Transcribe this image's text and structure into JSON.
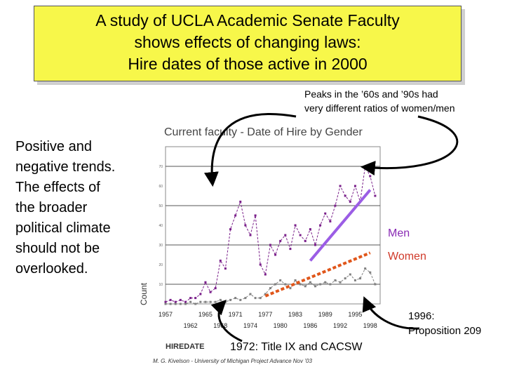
{
  "title": {
    "lines": [
      "A study of UCLA Academic Senate Faculty",
      "shows effects of changing laws:",
      "Hire dates of those active in 2000"
    ]
  },
  "annotations": {
    "peaks_lines": [
      "Peaks in the ’60s and ’90s had",
      "very different ratios of women/men"
    ],
    "trend_lines": [
      "Positive and",
      "negative trends.",
      "The effects of",
      "the broader",
      "political climate",
      "should not be",
      "overlooked."
    ],
    "men_label": "Men",
    "women_label": "Women",
    "prop_lines": [
      "1996:",
      "Proposition 209"
    ],
    "title9": "1972: Title IX and CACSW",
    "credit": "M. G. Kivelson - University of Michigan  Project Advance Nov ’03"
  },
  "colors": {
    "title_bg": "#f7f74a",
    "men": "#7a1f8a",
    "women": "#808080",
    "men_trend": "#9b5de5",
    "women_trend": "#e0561a"
  },
  "chart_data": {
    "type": "line",
    "title": "Current faculty - Date of Hire by Gender",
    "xlabel": "HIREDATE",
    "ylabel": "Count",
    "xlim": [
      1957,
      2000
    ],
    "ylim": [
      0,
      80
    ],
    "grid": true,
    "x_ticks_top": [
      "1957",
      "1965",
      "1971",
      "1977",
      "1983",
      "1989",
      "1995"
    ],
    "x_ticks_bottom": [
      "1962",
      "1968",
      "1974",
      "1980",
      "1986",
      "1992",
      "1998"
    ],
    "x": [
      1957,
      1958,
      1959,
      1960,
      1961,
      1962,
      1963,
      1964,
      1965,
      1966,
      1967,
      1968,
      1969,
      1970,
      1971,
      1972,
      1973,
      1974,
      1975,
      1976,
      1977,
      1978,
      1979,
      1980,
      1981,
      1982,
      1983,
      1984,
      1985,
      1986,
      1987,
      1988,
      1989,
      1990,
      1991,
      1992,
      1993,
      1994,
      1995,
      1996,
      1997,
      1998,
      1999
    ],
    "series": [
      {
        "name": "Men",
        "values": [
          1,
          2,
          1,
          2,
          1,
          3,
          3,
          5,
          11,
          6,
          8,
          22,
          18,
          38,
          45,
          52,
          40,
          35,
          45,
          20,
          15,
          30,
          25,
          32,
          35,
          28,
          40,
          35,
          32,
          38,
          30,
          40,
          46,
          42,
          50,
          60,
          55,
          52,
          60,
          52,
          70,
          65,
          55
        ]
      },
      {
        "name": "Women",
        "values": [
          0,
          0,
          0,
          0,
          0,
          1,
          0,
          1,
          1,
          1,
          1,
          2,
          1,
          2,
          3,
          2,
          3,
          5,
          3,
          3,
          5,
          8,
          10,
          12,
          10,
          8,
          12,
          10,
          9,
          11,
          9,
          10,
          11,
          10,
          12,
          11,
          13,
          15,
          12,
          13,
          18,
          16,
          10
        ]
      }
    ],
    "trend_lines": [
      {
        "name": "Men trend",
        "x": [
          1986,
          1998
        ],
        "y": [
          22,
          58
        ]
      },
      {
        "name": "Women trend",
        "x": [
          1977,
          1998
        ],
        "y": [
          4,
          26
        ]
      }
    ]
  }
}
